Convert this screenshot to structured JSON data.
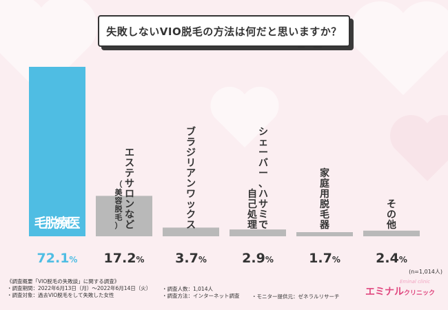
{
  "title": "失敗しないVIO脱毛の方法は何だと思いますか？",
  "colors": {
    "highlight": "#4fbde3",
    "bar": "#b9b9b9",
    "highlight_label": "#ffffff",
    "label": "#333333",
    "background": "#fbeef1"
  },
  "chart_data": {
    "type": "bar",
    "title": "失敗しないVIO脱毛の方法は何だと思いますか？",
    "categories": [
      "医療脱毛",
      "エステサロンなど（美容脱毛）",
      "ブラジリアンワックス",
      "シェーバー、ハサミで自己処理",
      "家庭用脱毛器",
      "その他"
    ],
    "values": [
      72.1,
      17.2,
      3.7,
      2.9,
      1.7,
      2.4
    ],
    "unit": "%",
    "value_labels": [
      "72.1%",
      "17.2%",
      "3.7%",
      "2.9%",
      "1.7%",
      "2.4%"
    ],
    "xlabel": "",
    "ylabel": "",
    "ylim": [
      0,
      72.1
    ],
    "sample_note": "(n=1,014人)"
  },
  "bar_text": [
    {
      "cols": [
        "医",
        "療",
        "脱",
        "毛"
      ]
    },
    {
      "cols": [
        "エステサロンなど",
        "（美容脱毛）"
      ]
    },
    {
      "cols": [
        "ブラジリアンワックス"
      ]
    },
    {
      "cols": [
        "シェーバー、ハサミで",
        "自己処理"
      ]
    },
    {
      "cols": [
        "家庭用脱毛器"
      ]
    },
    {
      "cols": [
        "その他"
      ]
    }
  ],
  "footer": {
    "line1": "《調査概要「VIO脱毛の失敗談」に関する調査》",
    "line2": "・調査期間：2022年6月13日（月）～2022年6月14日（火）",
    "line3": "・調査対象：過去VIO脱毛をして失敗した女性",
    "line4": "・調査人数：1,014人",
    "line5": "・調査方法：インターネット調査",
    "line6": "・モニター提供元：ゼネラルリサーチ"
  },
  "logo": {
    "main": "エミナル",
    "sub": "クリニック",
    "script": "Eminal clinic"
  }
}
